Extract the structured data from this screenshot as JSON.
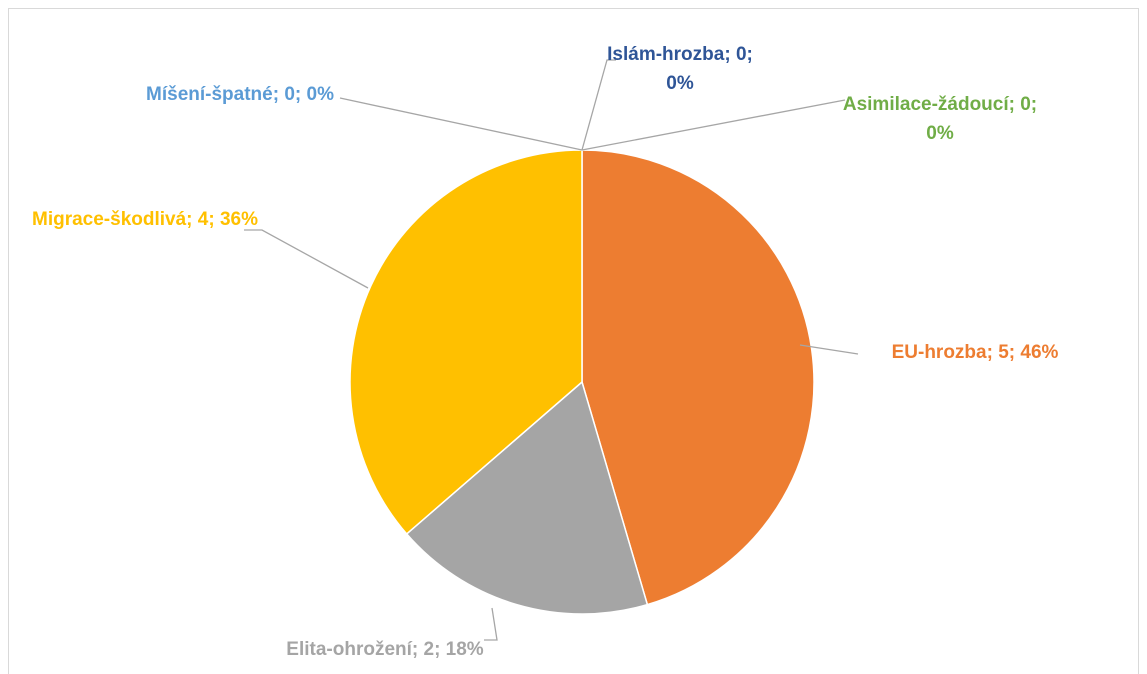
{
  "chart_data": {
    "type": "pie",
    "categories": [
      "Islám-hrozba",
      "Asimilace-žádoucí",
      "EU-hrozba",
      "Elita-ohrožení",
      "Migrace-škodlivá",
      "Míšení-špatné"
    ],
    "values": [
      0,
      0,
      5,
      2,
      4,
      0
    ],
    "value_labels": [
      "Islám-hrozba; 0; 0%",
      "Asimilace-žádoucí; 0; 0%",
      "EU-hrozba; 5; 46%",
      "Elita-ohrožení; 2; 18%",
      "Migrace-škodlivá; 4; 36%",
      "Míšení-špatné; 0; 0%"
    ],
    "colors": [
      "#4472c4",
      "#70ad47",
      "#ed7d31",
      "#a5a5a5",
      "#ffc000",
      "#5b9bd5"
    ]
  }
}
